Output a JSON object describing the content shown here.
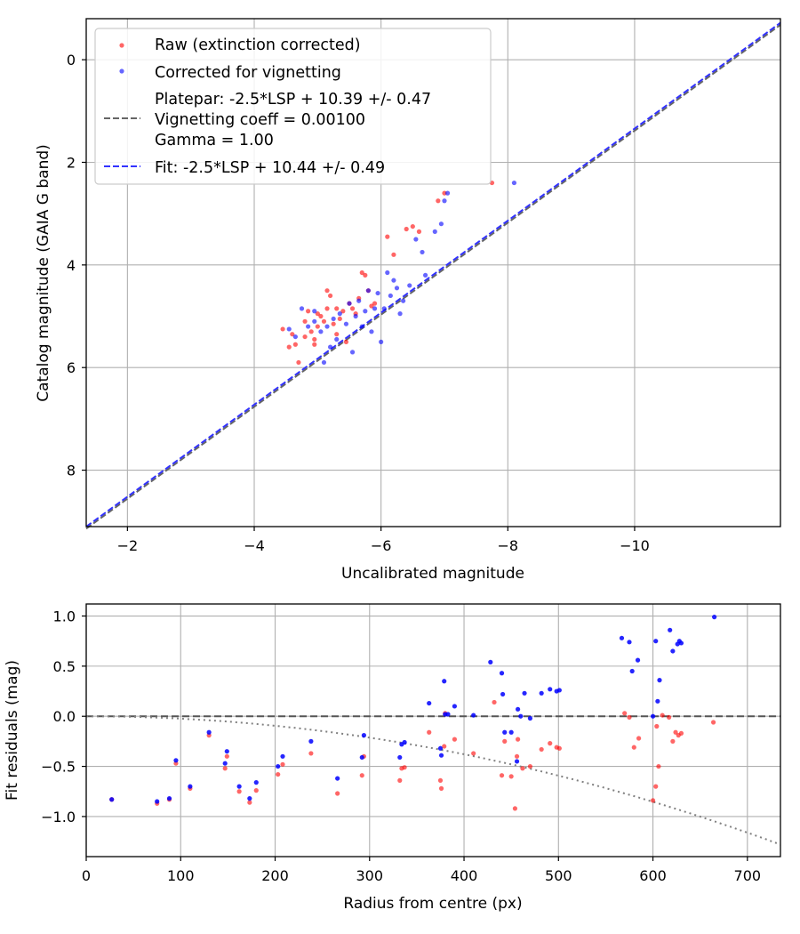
{
  "chart_data": [
    {
      "type": "scatter",
      "xlabel": "Uncalibrated magnitude",
      "ylabel": "Catalog magnitude (GAIA G band)",
      "xlim": [
        -1.35,
        -12.3
      ],
      "ylim": [
        9.1,
        -0.8
      ],
      "x_inverted": true,
      "y_inverted": true,
      "xticks": [
        -2,
        -4,
        -6,
        -8,
        -10
      ],
      "xtick_labels": [
        "−2",
        "−4",
        "−6",
        "−8",
        "−10"
      ],
      "yticks": [
        0,
        2,
        4,
        6,
        8
      ],
      "ytick_labels": [
        "0",
        "2",
        "4",
        "6",
        "8"
      ],
      "grid": true,
      "legend_position": "top-left",
      "series": [
        {
          "name": "Raw (extinction corrected)",
          "color": "#ff0000",
          "points": [
            [
              -4.45,
              5.25
            ],
            [
              -4.6,
              5.35
            ],
            [
              -4.7,
              5.9
            ],
            [
              -4.65,
              5.55
            ],
            [
              -4.8,
              5.1
            ],
            [
              -4.85,
              4.9
            ],
            [
              -4.9,
              5.3
            ],
            [
              -4.95,
              5.45
            ],
            [
              -5.0,
              5.2
            ],
            [
              -5.05,
              5.0
            ],
            [
              -5.1,
              5.1
            ],
            [
              -5.15,
              4.85
            ],
            [
              -5.2,
              4.6
            ],
            [
              -5.25,
              5.15
            ],
            [
              -5.3,
              5.35
            ],
            [
              -5.35,
              5.05
            ],
            [
              -5.4,
              4.9
            ],
            [
              -5.45,
              5.5
            ],
            [
              -5.5,
              4.75
            ],
            [
              -5.55,
              4.85
            ],
            [
              -5.6,
              4.95
            ],
            [
              -5.65,
              4.65
            ],
            [
              -5.7,
              4.15
            ],
            [
              -5.75,
              4.2
            ],
            [
              -5.8,
              4.5
            ],
            [
              -5.85,
              4.8
            ],
            [
              -5.9,
              4.75
            ],
            [
              -5.15,
              4.5
            ],
            [
              -4.95,
              5.55
            ],
            [
              -4.55,
              5.6
            ],
            [
              -6.1,
              3.45
            ],
            [
              -6.2,
              3.8
            ],
            [
              -6.4,
              3.3
            ],
            [
              -6.5,
              3.25
            ],
            [
              -6.6,
              3.35
            ],
            [
              -6.9,
              2.75
            ],
            [
              -7.0,
              2.6
            ],
            [
              -7.75,
              2.4
            ],
            [
              -4.8,
              5.4
            ],
            [
              -5.0,
              4.95
            ],
            [
              -5.3,
              4.85
            ]
          ]
        },
        {
          "name": "Corrected for vignetting",
          "color": "#0000ff",
          "points": [
            [
              -4.55,
              5.25
            ],
            [
              -4.75,
              4.85
            ],
            [
              -4.85,
              5.2
            ],
            [
              -4.95,
              5.1
            ],
            [
              -5.05,
              5.3
            ],
            [
              -5.1,
              5.9
            ],
            [
              -5.2,
              5.6
            ],
            [
              -5.3,
              5.45
            ],
            [
              -5.35,
              4.95
            ],
            [
              -5.45,
              5.15
            ],
            [
              -5.5,
              4.75
            ],
            [
              -5.6,
              5.0
            ],
            [
              -5.65,
              4.7
            ],
            [
              -5.7,
              5.2
            ],
            [
              -5.75,
              4.9
            ],
            [
              -5.8,
              4.5
            ],
            [
              -5.85,
              5.3
            ],
            [
              -5.9,
              4.85
            ],
            [
              -5.95,
              4.55
            ],
            [
              -6.0,
              5.5
            ],
            [
              -6.05,
              4.85
            ],
            [
              -6.1,
              4.15
            ],
            [
              -6.15,
              4.6
            ],
            [
              -6.2,
              4.3
            ],
            [
              -6.3,
              4.95
            ],
            [
              -6.35,
              4.7
            ],
            [
              -6.45,
              4.4
            ],
            [
              -6.55,
              3.5
            ],
            [
              -6.65,
              3.75
            ],
            [
              -6.7,
              4.2
            ],
            [
              -6.85,
              3.35
            ],
            [
              -6.95,
              3.2
            ],
            [
              -7.0,
              2.75
            ],
            [
              -7.05,
              2.6
            ],
            [
              -8.1,
              2.4
            ],
            [
              -4.95,
              4.9
            ],
            [
              -5.25,
              5.05
            ],
            [
              -5.55,
              5.7
            ],
            [
              -5.15,
              5.2
            ],
            [
              -4.65,
              5.4
            ],
            [
              -6.25,
              4.45
            ]
          ]
        }
      ],
      "lines": [
        {
          "name_lines": [
            "Platepar: -2.5*LSP + 10.39 +/- 0.47",
            "Vignetting coeff = 0.00100",
            "Gamma = 1.00"
          ],
          "color": "#666666",
          "style": "dashed",
          "x": [
            -1.35,
            -12.3
          ],
          "y": [
            9.14,
            -0.68
          ]
        },
        {
          "name": "Fit: -2.5*LSP + 10.44 +/- 0.49",
          "color": "#3333ff",
          "style": "dashed",
          "x": [
            -1.35,
            -12.3
          ],
          "y": [
            9.1,
            -0.72
          ]
        }
      ]
    },
    {
      "type": "scatter",
      "xlabel": "Radius from centre (px)",
      "ylabel": "Fit residuals (mag)",
      "xlim": [
        0,
        735
      ],
      "ylim": [
        -1.4,
        1.12
      ],
      "xticks": [
        0,
        100,
        200,
        300,
        400,
        500,
        600,
        700
      ],
      "xtick_labels": [
        "0",
        "100",
        "200",
        "300",
        "400",
        "500",
        "600",
        "700"
      ],
      "yticks": [
        1.0,
        0.5,
        0.0,
        -0.5,
        -1.0
      ],
      "ytick_labels": [
        "1.0",
        "0.5",
        "0.0",
        "−0.5",
        "−1.0"
      ],
      "grid": true,
      "zero_line": {
        "y": 0,
        "color": "#555555",
        "style": "dashed"
      },
      "vignetting_curve": {
        "color": "#808080",
        "style": "dotted",
        "coefficient": 0.001
      },
      "series": [
        {
          "name": "Raw (extinction corrected)",
          "color": "#ff0000",
          "points": [
            [
              27,
              -0.83
            ],
            [
              75,
              -0.87
            ],
            [
              88,
              -0.83
            ],
            [
              95,
              -0.47
            ],
            [
              110,
              -0.72
            ],
            [
              130,
              -0.19
            ],
            [
              147,
              -0.52
            ],
            [
              149,
              -0.4
            ],
            [
              162,
              -0.75
            ],
            [
              173,
              -0.86
            ],
            [
              180,
              -0.74
            ],
            [
              203,
              -0.58
            ],
            [
              208,
              -0.48
            ],
            [
              238,
              -0.37
            ],
            [
              266,
              -0.77
            ],
            [
              292,
              -0.59
            ],
            [
              294,
              -0.4
            ],
            [
              332,
              -0.64
            ],
            [
              334,
              -0.52
            ],
            [
              337,
              -0.51
            ],
            [
              363,
              -0.16
            ],
            [
              375,
              -0.64
            ],
            [
              376,
              -0.72
            ],
            [
              379,
              -0.3
            ],
            [
              380,
              0.03
            ],
            [
              390,
              -0.23
            ],
            [
              410,
              -0.37
            ],
            [
              432,
              0.14
            ],
            [
              440,
              -0.59
            ],
            [
              443,
              -0.25
            ],
            [
              450,
              -0.6
            ],
            [
              454,
              -0.92
            ],
            [
              456,
              -0.4
            ],
            [
              457,
              -0.23
            ],
            [
              462,
              -0.52
            ],
            [
              470,
              -0.5
            ],
            [
              482,
              -0.33
            ],
            [
              491,
              -0.27
            ],
            [
              498,
              -0.31
            ],
            [
              501,
              -0.32
            ],
            [
              570,
              0.03
            ],
            [
              575,
              -0.01
            ],
            [
              580,
              -0.31
            ],
            [
              585,
              -0.22
            ],
            [
              600,
              -0.84
            ],
            [
              603,
              -0.7
            ],
            [
              606,
              -0.5
            ],
            [
              610,
              0.01
            ],
            [
              617,
              -0.01
            ],
            [
              621,
              -0.25
            ],
            [
              624,
              -0.16
            ],
            [
              627,
              -0.19
            ],
            [
              630,
              -0.17
            ],
            [
              664,
              -0.06
            ],
            [
              604,
              -0.1
            ]
          ]
        },
        {
          "name": "Corrected for vignetting",
          "color": "#0000ff",
          "points": [
            [
              27,
              -0.83
            ],
            [
              75,
              -0.85
            ],
            [
              88,
              -0.82
            ],
            [
              95,
              -0.44
            ],
            [
              110,
              -0.7
            ],
            [
              130,
              -0.16
            ],
            [
              147,
              -0.47
            ],
            [
              149,
              -0.35
            ],
            [
              162,
              -0.7
            ],
            [
              173,
              -0.82
            ],
            [
              180,
              -0.66
            ],
            [
              203,
              -0.5
            ],
            [
              208,
              -0.4
            ],
            [
              238,
              -0.25
            ],
            [
              266,
              -0.62
            ],
            [
              292,
              -0.41
            ],
            [
              294,
              -0.19
            ],
            [
              332,
              -0.41
            ],
            [
              334,
              -0.28
            ],
            [
              337,
              -0.26
            ],
            [
              363,
              0.13
            ],
            [
              375,
              -0.32
            ],
            [
              376,
              -0.39
            ],
            [
              379,
              0.35
            ],
            [
              380,
              0.02
            ],
            [
              383,
              0.02
            ],
            [
              390,
              0.1
            ],
            [
              410,
              0.01
            ],
            [
              428,
              0.54
            ],
            [
              440,
              0.43
            ],
            [
              441,
              0.22
            ],
            [
              443,
              -0.16
            ],
            [
              450,
              -0.16
            ],
            [
              456,
              -0.45
            ],
            [
              457,
              0.07
            ],
            [
              460,
              0.0
            ],
            [
              464,
              0.23
            ],
            [
              470,
              -0.02
            ],
            [
              482,
              0.23
            ],
            [
              491,
              0.27
            ],
            [
              498,
              0.25
            ],
            [
              501,
              0.26
            ],
            [
              567,
              0.78
            ],
            [
              575,
              0.74
            ],
            [
              578,
              0.45
            ],
            [
              584,
              0.56
            ],
            [
              600,
              0.0
            ],
            [
              603,
              0.75
            ],
            [
              605,
              0.15
            ],
            [
              607,
              0.36
            ],
            [
              618,
              0.86
            ],
            [
              621,
              0.65
            ],
            [
              626,
              0.72
            ],
            [
              628,
              0.75
            ],
            [
              630,
              0.73
            ],
            [
              665,
              0.99
            ]
          ]
        }
      ]
    }
  ],
  "legend": {
    "raw_label": "Raw (extinction corrected)",
    "corrected_label": "Corrected for vignetting",
    "platepar_line1": "Platepar: -2.5*LSP + 10.39 +/- 0.47",
    "platepar_line2": "Vignetting coeff = 0.00100",
    "platepar_line3": "Gamma = 1.00",
    "fit_label": "Fit: -2.5*LSP + 10.44 +/- 0.49"
  },
  "colors": {
    "raw": "#ff0000",
    "corrected": "#0000ff",
    "platepar": "#666666",
    "fit": "#3333ff",
    "grid": "#b0b0b0"
  }
}
